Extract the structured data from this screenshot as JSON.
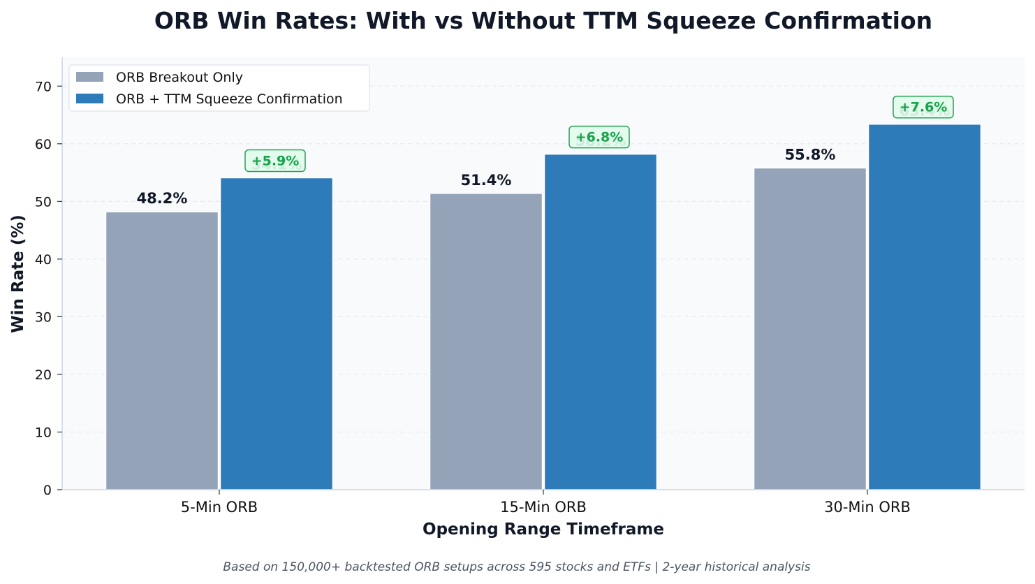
{
  "chart_data": {
    "type": "bar",
    "title": "ORB Win Rates: With vs Without TTM Squeeze Confirmation",
    "xlabel": "Opening Range Timeframe",
    "ylabel": "Win Rate (%)",
    "ylim": [
      0,
      75
    ],
    "yticks": [
      0,
      10,
      20,
      30,
      40,
      50,
      60,
      70
    ],
    "grid": "horizontal dashed",
    "legend_position": "top-left",
    "categories": [
      "5-Min ORB",
      "15-Min ORB",
      "30-Min ORB"
    ],
    "series": [
      {
        "name": "ORB Breakout Only",
        "color": "#94a3b8",
        "values": [
          48.2,
          51.4,
          55.8
        ],
        "labels": [
          "48.2%",
          "51.4%",
          "55.8%"
        ]
      },
      {
        "name": "ORB + TTM Squeeze Confirmation",
        "color": "#2e7bba",
        "values": [
          54.1,
          58.2,
          63.4
        ],
        "labels": [
          "54.1%",
          "58.2%",
          "63.4%"
        ]
      }
    ],
    "annotations": [
      "+5.9%",
      "+6.8%",
      "+7.6%"
    ],
    "annotation_color": "#16a34a",
    "footnote": "Based on 150,000+ backtested ORB setups across 595 stocks and ETFs | 2-year historical analysis"
  }
}
